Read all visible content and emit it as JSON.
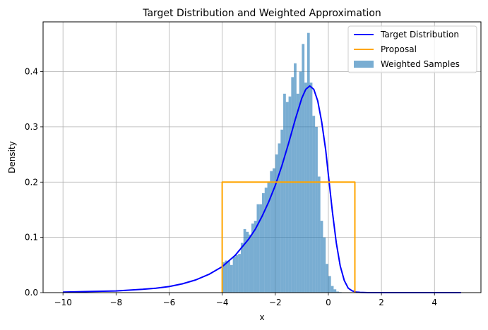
{
  "chart_data": {
    "type": "line",
    "title": "Target Distribution and Weighted Approximation",
    "xlabel": "x",
    "ylabel": "Density",
    "xlim": [
      -10.75,
      5.75
    ],
    "ylim": [
      0,
      0.49
    ],
    "xticks": [
      -10,
      -8,
      -6,
      -4,
      -2,
      0,
      2,
      4
    ],
    "yticks": [
      0.0,
      0.1,
      0.2,
      0.3,
      0.4
    ],
    "xtick_labels": [
      "−10",
      "−8",
      "−6",
      "−4",
      "−2",
      "0",
      "2",
      "4"
    ],
    "ytick_labels": [
      "0.0",
      "0.1",
      "0.2",
      "0.3",
      "0.4"
    ],
    "grid": true,
    "legend_position": "top-right",
    "series": [
      {
        "name": "Target Distribution",
        "kind": "line",
        "color": "#0000ff",
        "x": [
          -10,
          -9,
          -8,
          -7,
          -6.5,
          -6,
          -5.5,
          -5,
          -4.5,
          -4,
          -3.5,
          -3,
          -2.75,
          -2.5,
          -2.25,
          -2,
          -1.75,
          -1.5,
          -1.25,
          -1,
          -0.85,
          -0.7,
          -0.55,
          -0.4,
          -0.25,
          -0.1,
          0,
          0.15,
          0.3,
          0.45,
          0.6,
          0.75,
          0.9,
          1.05,
          1.2,
          1.5,
          2,
          3,
          4,
          5
        ],
        "y": [
          0.001,
          0.002,
          0.003,
          0.006,
          0.008,
          0.011,
          0.016,
          0.023,
          0.033,
          0.047,
          0.068,
          0.097,
          0.115,
          0.138,
          0.164,
          0.194,
          0.23,
          0.27,
          0.313,
          0.352,
          0.368,
          0.374,
          0.368,
          0.347,
          0.309,
          0.258,
          0.214,
          0.147,
          0.09,
          0.048,
          0.022,
          0.008,
          0.003,
          0.001,
          0.0005,
          0,
          0,
          0,
          0,
          0
        ]
      },
      {
        "name": "Proposal",
        "kind": "line",
        "color": "#ffa500",
        "x": [
          -4,
          -4,
          1,
          1
        ],
        "y": [
          0,
          0.2,
          0.2,
          0
        ]
      },
      {
        "name": "Weighted Samples",
        "kind": "histogram",
        "color": "#1f77b4",
        "bin_start": -4.0,
        "bin_width": 0.1,
        "values": [
          0.055,
          0.058,
          0.057,
          0.05,
          0.065,
          0.068,
          0.07,
          0.09,
          0.115,
          0.11,
          0.105,
          0.125,
          0.13,
          0.16,
          0.16,
          0.18,
          0.19,
          0.2,
          0.22,
          0.225,
          0.25,
          0.27,
          0.295,
          0.36,
          0.345,
          0.355,
          0.39,
          0.415,
          0.36,
          0.4,
          0.45,
          0.38,
          0.47,
          0.38,
          0.32,
          0.3,
          0.21,
          0.13,
          0.1,
          0.052,
          0.03,
          0.012,
          0.006,
          0.002,
          0.001
        ]
      }
    ]
  }
}
